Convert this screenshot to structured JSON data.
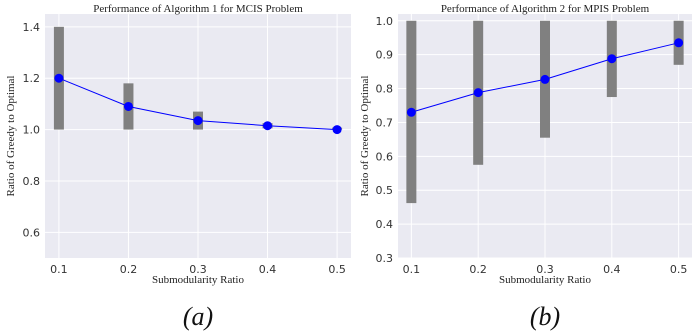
{
  "chart_data": [
    {
      "type": "line",
      "title": "Performance of Algorithm 1 for MCIS Problem",
      "xlabel": "Submodularity Ratio",
      "ylabel": "Ratio of Greedy to Optimal",
      "panel_label": "(a)",
      "x": [
        0.1,
        0.2,
        0.3,
        0.4,
        0.5
      ],
      "x_ticks": [
        "0.1",
        "0.2",
        "0.3",
        "0.4",
        "0.5"
      ],
      "y_ticks": [
        "0.6",
        "0.8",
        "1.0",
        "1.2",
        "1.4"
      ],
      "ylim": [
        0.5,
        1.45
      ],
      "xlim": [
        0.08,
        0.52
      ],
      "series": [
        {
          "mean": [
            1.2,
            1.09,
            1.035,
            1.015,
            1.0
          ],
          "min": [
            1.0,
            1.0,
            1.0,
            1.005,
            1.0
          ],
          "max": [
            1.4,
            1.18,
            1.07,
            1.025,
            1.0
          ]
        }
      ],
      "grid": true,
      "colors": {
        "line": "#0000ff",
        "range": "#808080",
        "background": "#eaeaf2"
      }
    },
    {
      "type": "line",
      "title": "Performance of Algorithm 2 for MPIS Problem",
      "xlabel": "Submodularity Ratio",
      "ylabel": "Ratio of Greedy to Optimal",
      "panel_label": "(b)",
      "x": [
        0.1,
        0.2,
        0.3,
        0.4,
        0.5
      ],
      "x_ticks": [
        "0.1",
        "0.2",
        "0.3",
        "0.4",
        "0.5"
      ],
      "y_ticks": [
        "0.3",
        "0.4",
        "0.5",
        "0.6",
        "0.7",
        "0.8",
        "0.9",
        "1.0"
      ],
      "ylim": [
        0.3,
        1.02
      ],
      "xlim": [
        0.08,
        0.52
      ],
      "series": [
        {
          "mean": [
            0.73,
            0.788,
            0.827,
            0.888,
            0.935
          ],
          "min": [
            0.462,
            0.575,
            0.655,
            0.775,
            0.87
          ],
          "max": [
            1.0,
            1.0,
            1.0,
            1.0,
            1.0
          ]
        }
      ],
      "grid": true,
      "colors": {
        "line": "#0000ff",
        "range": "#808080",
        "background": "#eaeaf2"
      }
    }
  ]
}
